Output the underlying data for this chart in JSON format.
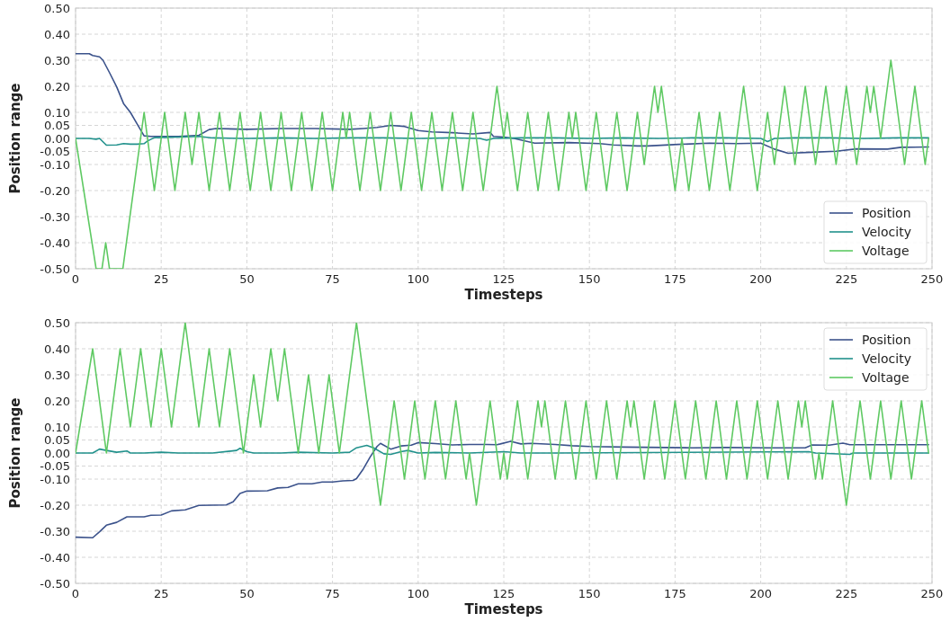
{
  "chart_data": [
    {
      "type": "line",
      "xlabel": "Timesteps",
      "ylabel": "Position range",
      "xlim": [
        0,
        250
      ],
      "ylim": [
        -0.5,
        0.5
      ],
      "xticks": [
        0,
        25,
        50,
        75,
        100,
        125,
        150,
        175,
        200,
        225,
        250
      ],
      "yticks": [
        {
          "value": 0.5,
          "label": "0.50"
        },
        {
          "value": 0.4,
          "label": "0.40"
        },
        {
          "value": 0.3,
          "label": "0.30"
        },
        {
          "value": 0.2,
          "label": "0.20"
        },
        {
          "value": 0.1,
          "label": "0.10"
        },
        {
          "value": 0.05,
          "label": "0.05"
        },
        {
          "value": 0,
          "label": "0.00"
        },
        {
          "value": -0.05,
          "label": "-0.05"
        },
        {
          "value": -0.1,
          "label": "-0.10"
        },
        {
          "value": -0.2,
          "label": "-0.20"
        },
        {
          "value": -0.3,
          "label": "-0.30"
        },
        {
          "value": -0.4,
          "label": "-0.40"
        },
        {
          "value": -0.5,
          "label": "-0.50"
        }
      ],
      "grid": true,
      "legend": "bottom right",
      "line_style": "solid",
      "series": [
        {
          "name": "Position",
          "color": "#3b528b",
          "x": [
            0,
            4,
            5,
            7,
            8,
            10,
            12,
            14,
            16,
            18,
            20,
            22,
            30,
            36,
            39,
            41,
            50,
            60,
            70,
            80,
            84,
            88,
            92,
            96,
            100,
            104,
            110,
            116,
            121,
            122,
            125,
            128,
            134,
            144,
            153,
            157,
            164,
            167,
            176,
            185,
            193,
            200,
            204,
            208,
            215,
            222,
            228,
            237,
            241,
            249
          ],
          "values": [
            0.325,
            0.325,
            0.318,
            0.313,
            0.3,
            0.25,
            0.198,
            0.134,
            0.1,
            0.055,
            0.01,
            0.008,
            0.008,
            0.012,
            0.034,
            0.038,
            0.035,
            0.038,
            0.038,
            0.035,
            0.038,
            0.042,
            0.05,
            0.046,
            0.03,
            0.025,
            0.022,
            0.017,
            0.023,
            0.008,
            0.005,
            0,
            -0.018,
            -0.016,
            -0.02,
            -0.025,
            -0.029,
            -0.029,
            -0.023,
            -0.018,
            -0.02,
            -0.018,
            -0.041,
            -0.057,
            -0.053,
            -0.049,
            -0.04,
            -0.041,
            -0.034,
            -0.033
          ]
        },
        {
          "name": "Velocity",
          "color": "#21918c",
          "x": [
            0,
            4,
            6,
            7,
            9,
            12,
            14,
            16,
            18,
            20,
            21,
            23,
            30,
            36,
            40,
            50,
            60,
            70,
            80,
            90,
            100,
            110,
            118,
            120,
            122,
            130,
            140,
            150,
            160,
            170,
            180,
            190,
            200,
            202,
            204,
            210,
            220,
            230,
            240,
            249
          ],
          "values": [
            0,
            0,
            -0.003,
            0,
            -0.026,
            -0.025,
            -0.02,
            -0.022,
            -0.022,
            -0.02,
            -0.01,
            0.003,
            0.005,
            0.008,
            0.002,
            0,
            0.002,
            0,
            0.002,
            0.002,
            0,
            0.002,
            0,
            -0.007,
            0,
            0.002,
            0.002,
            0,
            0.002,
            0,
            0.002,
            0.002,
            0,
            -0.012,
            0,
            0.002,
            0.002,
            0,
            0.002,
            0.002
          ]
        },
        {
          "name": "Voltage",
          "color": "#5ec962",
          "x": [
            0,
            6,
            7.7,
            8.8,
            9.9,
            13.8,
            20,
            23,
            26,
            29,
            32,
            34,
            36,
            39,
            42,
            45,
            48,
            51,
            54,
            57,
            60,
            63,
            66,
            69,
            72,
            75,
            78,
            79,
            80,
            83,
            86,
            89,
            92,
            95,
            98,
            101,
            104,
            107,
            110,
            113,
            116,
            119,
            123,
            125,
            126,
            129,
            132,
            135,
            138,
            141,
            144,
            145,
            146,
            149,
            152,
            155,
            158,
            161,
            164,
            166,
            169,
            170,
            171,
            175,
            177,
            179,
            182,
            185,
            188,
            191,
            195,
            199,
            202,
            204,
            207,
            210,
            213,
            216,
            219,
            222,
            225,
            228,
            231,
            232,
            233,
            235,
            238,
            242,
            245,
            248,
            249
          ],
          "values": [
            0,
            -0.5,
            -0.5,
            -0.4,
            -0.5,
            -0.5,
            0.1,
            -0.2,
            0.1,
            -0.2,
            0.1,
            -0.1,
            0.1,
            -0.2,
            0.1,
            -0.2,
            0.1,
            -0.2,
            0.1,
            -0.2,
            0.1,
            -0.2,
            0.1,
            -0.2,
            0.1,
            -0.2,
            0.1,
            0,
            0.1,
            -0.2,
            0.1,
            -0.2,
            0.1,
            -0.2,
            0.1,
            -0.2,
            0.1,
            -0.2,
            0.1,
            -0.2,
            0.1,
            -0.2,
            0.2,
            0,
            0.1,
            -0.2,
            0.1,
            -0.2,
            0.1,
            -0.2,
            0.1,
            0,
            0.1,
            -0.2,
            0.1,
            -0.2,
            0.1,
            -0.2,
            0.1,
            -0.1,
            0.2,
            0.1,
            0.2,
            -0.2,
            0,
            -0.2,
            0.1,
            -0.2,
            0.1,
            -0.2,
            0.2,
            -0.2,
            0.1,
            -0.1,
            0.2,
            -0.1,
            0.2,
            -0.1,
            0.2,
            -0.1,
            0.2,
            -0.1,
            0.2,
            0.1,
            0.2,
            0,
            0.3,
            -0.1,
            0.2,
            -0.1,
            0
          ]
        }
      ]
    },
    {
      "type": "line",
      "xlabel": "Timesteps",
      "ylabel": "Position range",
      "xlim": [
        0,
        250
      ],
      "ylim": [
        -0.5,
        0.5
      ],
      "xticks": [
        0,
        25,
        50,
        75,
        100,
        125,
        150,
        175,
        200,
        225,
        250
      ],
      "yticks": [
        {
          "value": 0.5,
          "label": "0.50"
        },
        {
          "value": 0.4,
          "label": "0.40"
        },
        {
          "value": 0.3,
          "label": "0.30"
        },
        {
          "value": 0.2,
          "label": "0.20"
        },
        {
          "value": 0.1,
          "label": "0.10"
        },
        {
          "value": 0.05,
          "label": "0.05"
        },
        {
          "value": 0,
          "label": "0.00"
        },
        {
          "value": -0.05,
          "label": "-0.05"
        },
        {
          "value": -0.1,
          "label": "-0.10"
        },
        {
          "value": -0.2,
          "label": "-0.20"
        },
        {
          "value": -0.3,
          "label": "-0.30"
        },
        {
          "value": -0.4,
          "label": "-0.40"
        },
        {
          "value": -0.5,
          "label": "-0.50"
        }
      ],
      "grid": true,
      "legend": "top right",
      "line_style": "solid",
      "series": [
        {
          "name": "Position",
          "color": "#3b528b",
          "x": [
            0,
            5,
            7,
            9,
            12,
            15,
            20,
            22,
            25,
            28,
            32,
            36,
            44,
            46,
            48,
            50,
            56,
            59,
            62,
            65,
            69,
            72,
            75,
            78,
            81,
            82,
            84,
            86,
            88,
            89,
            92,
            95,
            98,
            100,
            105,
            110,
            115,
            120,
            123,
            124,
            127,
            130,
            133,
            140,
            145,
            150,
            160,
            166,
            180,
            190,
            203,
            213,
            215,
            220,
            224,
            226,
            230,
            249
          ],
          "values": [
            -0.323,
            -0.325,
            -0.302,
            -0.277,
            -0.266,
            -0.245,
            -0.245,
            -0.239,
            -0.238,
            -0.222,
            -0.218,
            -0.201,
            -0.199,
            -0.187,
            -0.155,
            -0.146,
            -0.145,
            -0.134,
            -0.132,
            -0.118,
            -0.118,
            -0.111,
            -0.111,
            -0.107,
            -0.105,
            -0.098,
            -0.061,
            -0.015,
            0.025,
            0.037,
            0.015,
            0.027,
            0.03,
            0.04,
            0.036,
            0.031,
            0.033,
            0.033,
            0.032,
            0.035,
            0.045,
            0.035,
            0.037,
            0.033,
            0.028,
            0.025,
            0.023,
            0.022,
            0.02,
            0.021,
            0.02,
            0.02,
            0.031,
            0.03,
            0.038,
            0.032,
            0.032,
            0.032
          ]
        },
        {
          "name": "Velocity",
          "color": "#21918c",
          "x": [
            0,
            5,
            7,
            9,
            12,
            15,
            16,
            20,
            25,
            30,
            40,
            47,
            48,
            50,
            52,
            60,
            65,
            75,
            80,
            82,
            85,
            87,
            90,
            92,
            95,
            97,
            100,
            105,
            115,
            125,
            130,
            140,
            214,
            216,
            226,
            227,
            249
          ],
          "values": [
            0,
            0,
            0.015,
            0.01,
            0.003,
            0.008,
            0,
            0,
            0.003,
            0,
            0,
            0.01,
            0.018,
            0.005,
            0,
            0,
            0.003,
            0,
            0.003,
            0.02,
            0.029,
            0.02,
            -0.003,
            -0.005,
            0.005,
            0.01,
            0,
            0.002,
            0,
            0.005,
            0,
            0,
            0.005,
            0,
            -0.005,
            0,
            0
          ]
        },
        {
          "name": "Voltage",
          "color": "#5ec962",
          "x": [
            0,
            5,
            9,
            13,
            16,
            19,
            22,
            25,
            28,
            32,
            36,
            39,
            42,
            45,
            49,
            52,
            54,
            57,
            59,
            61,
            65,
            68,
            71,
            74,
            77,
            82,
            89,
            93,
            96,
            99,
            102,
            105,
            108,
            111,
            114,
            115,
            117,
            121,
            124,
            125,
            126,
            129,
            132,
            135,
            136,
            137,
            140,
            143,
            146,
            149,
            152,
            155,
            158,
            161,
            162,
            163,
            166,
            169,
            172,
            175,
            178,
            181,
            184,
            187,
            190,
            193,
            196,
            199,
            202,
            205,
            208,
            211,
            212,
            213,
            216,
            217,
            218,
            221,
            225,
            229,
            232,
            235,
            238,
            241,
            244,
            247,
            249
          ],
          "values": [
            0,
            0.4,
            0,
            0.4,
            0.1,
            0.4,
            0.1,
            0.4,
            0.1,
            0.5,
            0.1,
            0.4,
            0.1,
            0.4,
            0,
            0.3,
            0.1,
            0.4,
            0.2,
            0.4,
            0,
            0.3,
            0,
            0.3,
            0,
            0.5,
            -0.2,
            0.2,
            -0.1,
            0.2,
            -0.1,
            0.2,
            -0.1,
            0.2,
            -0.1,
            0,
            -0.2,
            0.2,
            -0.1,
            0,
            -0.1,
            0.2,
            -0.1,
            0.2,
            0.1,
            0.2,
            -0.1,
            0.2,
            -0.1,
            0.2,
            -0.1,
            0.2,
            -0.1,
            0.2,
            0.1,
            0.2,
            -0.1,
            0.2,
            -0.1,
            0.2,
            -0.1,
            0.2,
            -0.1,
            0.2,
            -0.1,
            0.2,
            -0.1,
            0.2,
            -0.1,
            0.2,
            -0.1,
            0.2,
            0.1,
            0.2,
            -0.1,
            0,
            -0.1,
            0.2,
            -0.2,
            0.2,
            -0.1,
            0.2,
            -0.1,
            0.2,
            -0.1,
            0.2,
            0
          ]
        }
      ]
    }
  ]
}
